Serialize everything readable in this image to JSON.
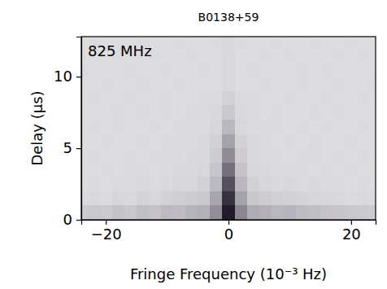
{
  "chart_data": {
    "type": "heatmap",
    "title": "B0138+59",
    "annotation": "825 MHz",
    "x_label": "Fringe Frequency (10⁻³ Hz)",
    "y_label": "Delay (μs)",
    "xlim": [
      -24,
      24
    ],
    "ylim": [
      0,
      12.8
    ],
    "xticks": [
      -20,
      0,
      20
    ],
    "yticks": [
      0,
      5,
      10
    ],
    "x_edges": [
      -25,
      -23,
      -21,
      -19,
      -17,
      -15,
      -13,
      -11,
      -9,
      -7,
      -5,
      -3,
      -1,
      1,
      3,
      5,
      7,
      9,
      11,
      13,
      15,
      17,
      19,
      21,
      23,
      25
    ],
    "y_edges": [
      0,
      1,
      2,
      3,
      4,
      5,
      6,
      7,
      8,
      9,
      10,
      11,
      12,
      13
    ],
    "cells": [
      [
        0.18,
        0.2,
        0.19,
        0.22,
        0.2,
        0.24,
        0.22,
        0.26,
        0.25,
        0.28,
        0.3,
        0.45,
        0.95,
        0.48,
        0.32,
        0.3,
        0.27,
        0.28,
        0.25,
        0.24,
        0.22,
        0.21,
        0.2,
        0.19,
        0.18
      ],
      [
        0.12,
        0.13,
        0.12,
        0.14,
        0.13,
        0.15,
        0.14,
        0.16,
        0.17,
        0.18,
        0.2,
        0.35,
        0.85,
        0.36,
        0.2,
        0.18,
        0.17,
        0.16,
        0.15,
        0.14,
        0.14,
        0.13,
        0.12,
        0.13,
        0.12
      ],
      [
        0.11,
        0.12,
        0.11,
        0.12,
        0.12,
        0.13,
        0.12,
        0.13,
        0.14,
        0.14,
        0.16,
        0.26,
        0.72,
        0.27,
        0.16,
        0.14,
        0.13,
        0.14,
        0.12,
        0.13,
        0.12,
        0.12,
        0.11,
        0.12,
        0.11
      ],
      [
        0.11,
        0.11,
        0.12,
        0.11,
        0.12,
        0.12,
        0.11,
        0.12,
        0.13,
        0.13,
        0.14,
        0.21,
        0.58,
        0.22,
        0.14,
        0.13,
        0.12,
        0.12,
        0.12,
        0.11,
        0.12,
        0.11,
        0.12,
        0.11,
        0.11
      ],
      [
        0.11,
        0.12,
        0.11,
        0.11,
        0.12,
        0.11,
        0.12,
        0.12,
        0.12,
        0.13,
        0.13,
        0.18,
        0.46,
        0.18,
        0.13,
        0.12,
        0.12,
        0.11,
        0.12,
        0.12,
        0.11,
        0.12,
        0.11,
        0.12,
        0.11
      ],
      [
        0.11,
        0.11,
        0.12,
        0.11,
        0.11,
        0.12,
        0.11,
        0.12,
        0.12,
        0.12,
        0.13,
        0.16,
        0.36,
        0.16,
        0.13,
        0.12,
        0.11,
        0.12,
        0.11,
        0.12,
        0.11,
        0.11,
        0.12,
        0.11,
        0.11
      ],
      [
        0.11,
        0.12,
        0.11,
        0.12,
        0.11,
        0.11,
        0.12,
        0.11,
        0.12,
        0.12,
        0.12,
        0.14,
        0.27,
        0.14,
        0.12,
        0.12,
        0.12,
        0.11,
        0.12,
        0.11,
        0.12,
        0.11,
        0.11,
        0.12,
        0.11
      ],
      [
        0.11,
        0.11,
        0.11,
        0.12,
        0.11,
        0.12,
        0.11,
        0.12,
        0.11,
        0.12,
        0.12,
        0.13,
        0.2,
        0.13,
        0.12,
        0.11,
        0.12,
        0.11,
        0.11,
        0.12,
        0.11,
        0.12,
        0.11,
        0.11,
        0.11
      ],
      [
        0.11,
        0.12,
        0.11,
        0.11,
        0.12,
        0.11,
        0.11,
        0.12,
        0.11,
        0.11,
        0.12,
        0.12,
        0.16,
        0.12,
        0.12,
        0.11,
        0.11,
        0.12,
        0.11,
        0.11,
        0.12,
        0.11,
        0.11,
        0.12,
        0.11
      ],
      [
        0.11,
        0.11,
        0.12,
        0.11,
        0.11,
        0.12,
        0.11,
        0.11,
        0.12,
        0.11,
        0.11,
        0.11,
        0.13,
        0.11,
        0.11,
        0.12,
        0.11,
        0.11,
        0.12,
        0.11,
        0.11,
        0.12,
        0.11,
        0.11,
        0.12
      ],
      [
        0.12,
        0.11,
        0.11,
        0.11,
        0.12,
        0.11,
        0.11,
        0.12,
        0.11,
        0.11,
        0.12,
        0.11,
        0.13,
        0.11,
        0.12,
        0.11,
        0.11,
        0.11,
        0.12,
        0.11,
        0.12,
        0.11,
        0.11,
        0.11,
        0.11
      ],
      [
        0.11,
        0.11,
        0.11,
        0.12,
        0.11,
        0.11,
        0.12,
        0.11,
        0.11,
        0.12,
        0.11,
        0.11,
        0.13,
        0.11,
        0.11,
        0.12,
        0.11,
        0.12,
        0.11,
        0.11,
        0.11,
        0.12,
        0.11,
        0.12,
        0.11
      ],
      [
        0.11,
        0.12,
        0.11,
        0.11,
        0.11,
        0.12,
        0.11,
        0.11,
        0.12,
        0.11,
        0.11,
        0.12,
        0.13,
        0.12,
        0.11,
        0.11,
        0.12,
        0.11,
        0.11,
        0.12,
        0.11,
        0.11,
        0.12,
        0.11,
        0.11
      ]
    ]
  }
}
